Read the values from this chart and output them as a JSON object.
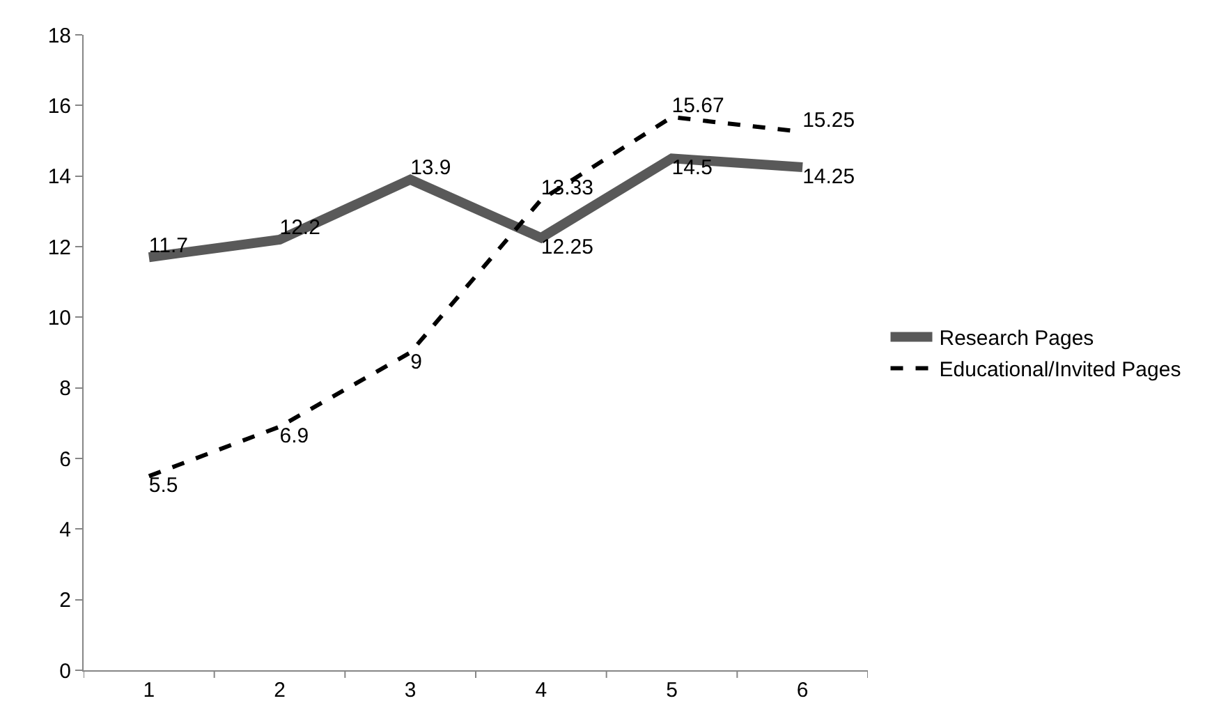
{
  "chart_data": {
    "type": "line",
    "categories": [
      "1",
      "2",
      "3",
      "4",
      "5",
      "6"
    ],
    "series": [
      {
        "name": "Research Pages",
        "color": "#595959",
        "line_style": "solid",
        "values": [
          11.7,
          12.2,
          13.9,
          12.25,
          14.5,
          14.25
        ]
      },
      {
        "name": "Educational/Invited Pages",
        "color": "#000000",
        "line_style": "dashed",
        "values": [
          5.5,
          6.9,
          9,
          13.33,
          15.67,
          15.25
        ]
      }
    ],
    "ylim": [
      0,
      18
    ],
    "yticks": [
      0,
      2,
      4,
      6,
      8,
      10,
      12,
      14,
      16,
      18
    ],
    "data_labels": true,
    "grid": false,
    "legend": "right",
    "marker": "none"
  }
}
